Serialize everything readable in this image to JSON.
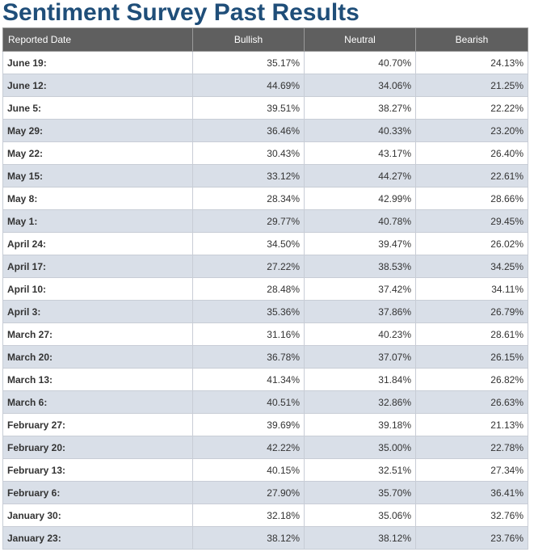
{
  "title": "Sentiment Survey Past Results",
  "table": {
    "headers": {
      "date": "Reported Date",
      "bullish": "Bullish",
      "neutral": "Neutral",
      "bearish": "Bearish"
    },
    "rows": [
      {
        "date": "June 19:",
        "bullish": "35.17%",
        "neutral": "40.70%",
        "bearish": "24.13%"
      },
      {
        "date": "June 12:",
        "bullish": "44.69%",
        "neutral": "34.06%",
        "bearish": "21.25%"
      },
      {
        "date": "June 5:",
        "bullish": "39.51%",
        "neutral": "38.27%",
        "bearish": "22.22%"
      },
      {
        "date": "May 29:",
        "bullish": "36.46%",
        "neutral": "40.33%",
        "bearish": "23.20%"
      },
      {
        "date": "May 22:",
        "bullish": "30.43%",
        "neutral": "43.17%",
        "bearish": "26.40%"
      },
      {
        "date": "May 15:",
        "bullish": "33.12%",
        "neutral": "44.27%",
        "bearish": "22.61%"
      },
      {
        "date": "May 8:",
        "bullish": "28.34%",
        "neutral": "42.99%",
        "bearish": "28.66%"
      },
      {
        "date": "May 1:",
        "bullish": "29.77%",
        "neutral": "40.78%",
        "bearish": "29.45%"
      },
      {
        "date": "April 24:",
        "bullish": "34.50%",
        "neutral": "39.47%",
        "bearish": "26.02%"
      },
      {
        "date": "April 17:",
        "bullish": "27.22%",
        "neutral": "38.53%",
        "bearish": "34.25%"
      },
      {
        "date": "April 10:",
        "bullish": "28.48%",
        "neutral": "37.42%",
        "bearish": "34.11%"
      },
      {
        "date": "April 3:",
        "bullish": "35.36%",
        "neutral": "37.86%",
        "bearish": "26.79%"
      },
      {
        "date": "March 27:",
        "bullish": "31.16%",
        "neutral": "40.23%",
        "bearish": "28.61%"
      },
      {
        "date": "March 20:",
        "bullish": "36.78%",
        "neutral": "37.07%",
        "bearish": "26.15%"
      },
      {
        "date": "March 13:",
        "bullish": "41.34%",
        "neutral": "31.84%",
        "bearish": "26.82%"
      },
      {
        "date": "March 6:",
        "bullish": "40.51%",
        "neutral": "32.86%",
        "bearish": "26.63%"
      },
      {
        "date": "February 27:",
        "bullish": "39.69%",
        "neutral": "39.18%",
        "bearish": "21.13%"
      },
      {
        "date": "February 20:",
        "bullish": "42.22%",
        "neutral": "35.00%",
        "bearish": "22.78%"
      },
      {
        "date": "February 13:",
        "bullish": "40.15%",
        "neutral": "32.51%",
        "bearish": "27.34%"
      },
      {
        "date": "February 6:",
        "bullish": "27.90%",
        "neutral": "35.70%",
        "bearish": "36.41%"
      },
      {
        "date": "January 30:",
        "bullish": "32.18%",
        "neutral": "35.06%",
        "bearish": "32.76%"
      },
      {
        "date": "January 23:",
        "bullish": "38.12%",
        "neutral": "38.12%",
        "bearish": "23.76%"
      }
    ]
  },
  "colors": {
    "title": "#1f4e79",
    "header_bg": "#5f5f5f",
    "row_alt_bg": "#d9dfe8"
  }
}
